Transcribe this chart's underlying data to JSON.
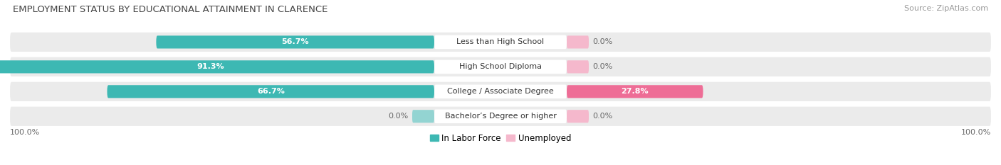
{
  "title": "EMPLOYMENT STATUS BY EDUCATIONAL ATTAINMENT IN CLARENCE",
  "source": "Source: ZipAtlas.com",
  "categories": [
    "Less than High School",
    "High School Diploma",
    "College / Associate Degree",
    "Bachelor’s Degree or higher"
  ],
  "labor_force": [
    56.7,
    91.3,
    66.7,
    0.0
  ],
  "unemployed": [
    0.0,
    0.0,
    27.8,
    0.0
  ],
  "labor_force_color": "#3db8b3",
  "unemployed_color": "#ee6d96",
  "unemployed_small_color": "#f5b8cc",
  "labor_force_small_color": "#93d4d2",
  "row_bg_color": "#ebebeb",
  "axis_label_left": "100.0%",
  "axis_label_right": "100.0%",
  "max_val": 100.0,
  "title_fontsize": 9.5,
  "source_fontsize": 8,
  "bar_label_fontsize": 8,
  "category_fontsize": 8,
  "legend_fontsize": 8.5,
  "axis_fontsize": 8
}
